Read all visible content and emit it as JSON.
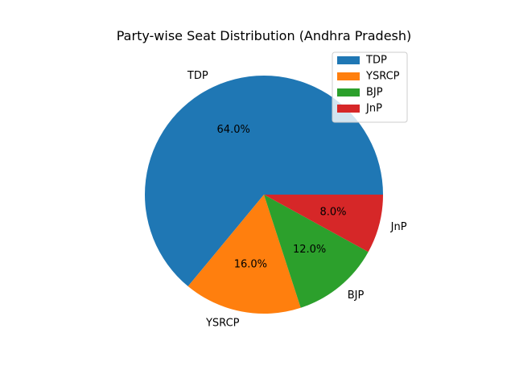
{
  "chart_data": {
    "type": "pie",
    "title": "Party-wise Seat Distribution (Andhra Pradesh)",
    "categories": [
      "TDP",
      "YSRCP",
      "BJP",
      "JnP"
    ],
    "values": [
      64.0,
      16.0,
      12.0,
      8.0
    ],
    "value_labels": [
      "64.0%",
      "16.0%",
      "12.0%",
      "8.0%"
    ],
    "colors": [
      "#1f77b4",
      "#ff7f0e",
      "#2ca02c",
      "#d62728"
    ],
    "start_angle_deg": 0,
    "direction": "counterclockwise",
    "legend": {
      "placement": "upper-right",
      "entries": [
        "TDP",
        "YSRCP",
        "BJP",
        "JnP"
      ]
    }
  }
}
